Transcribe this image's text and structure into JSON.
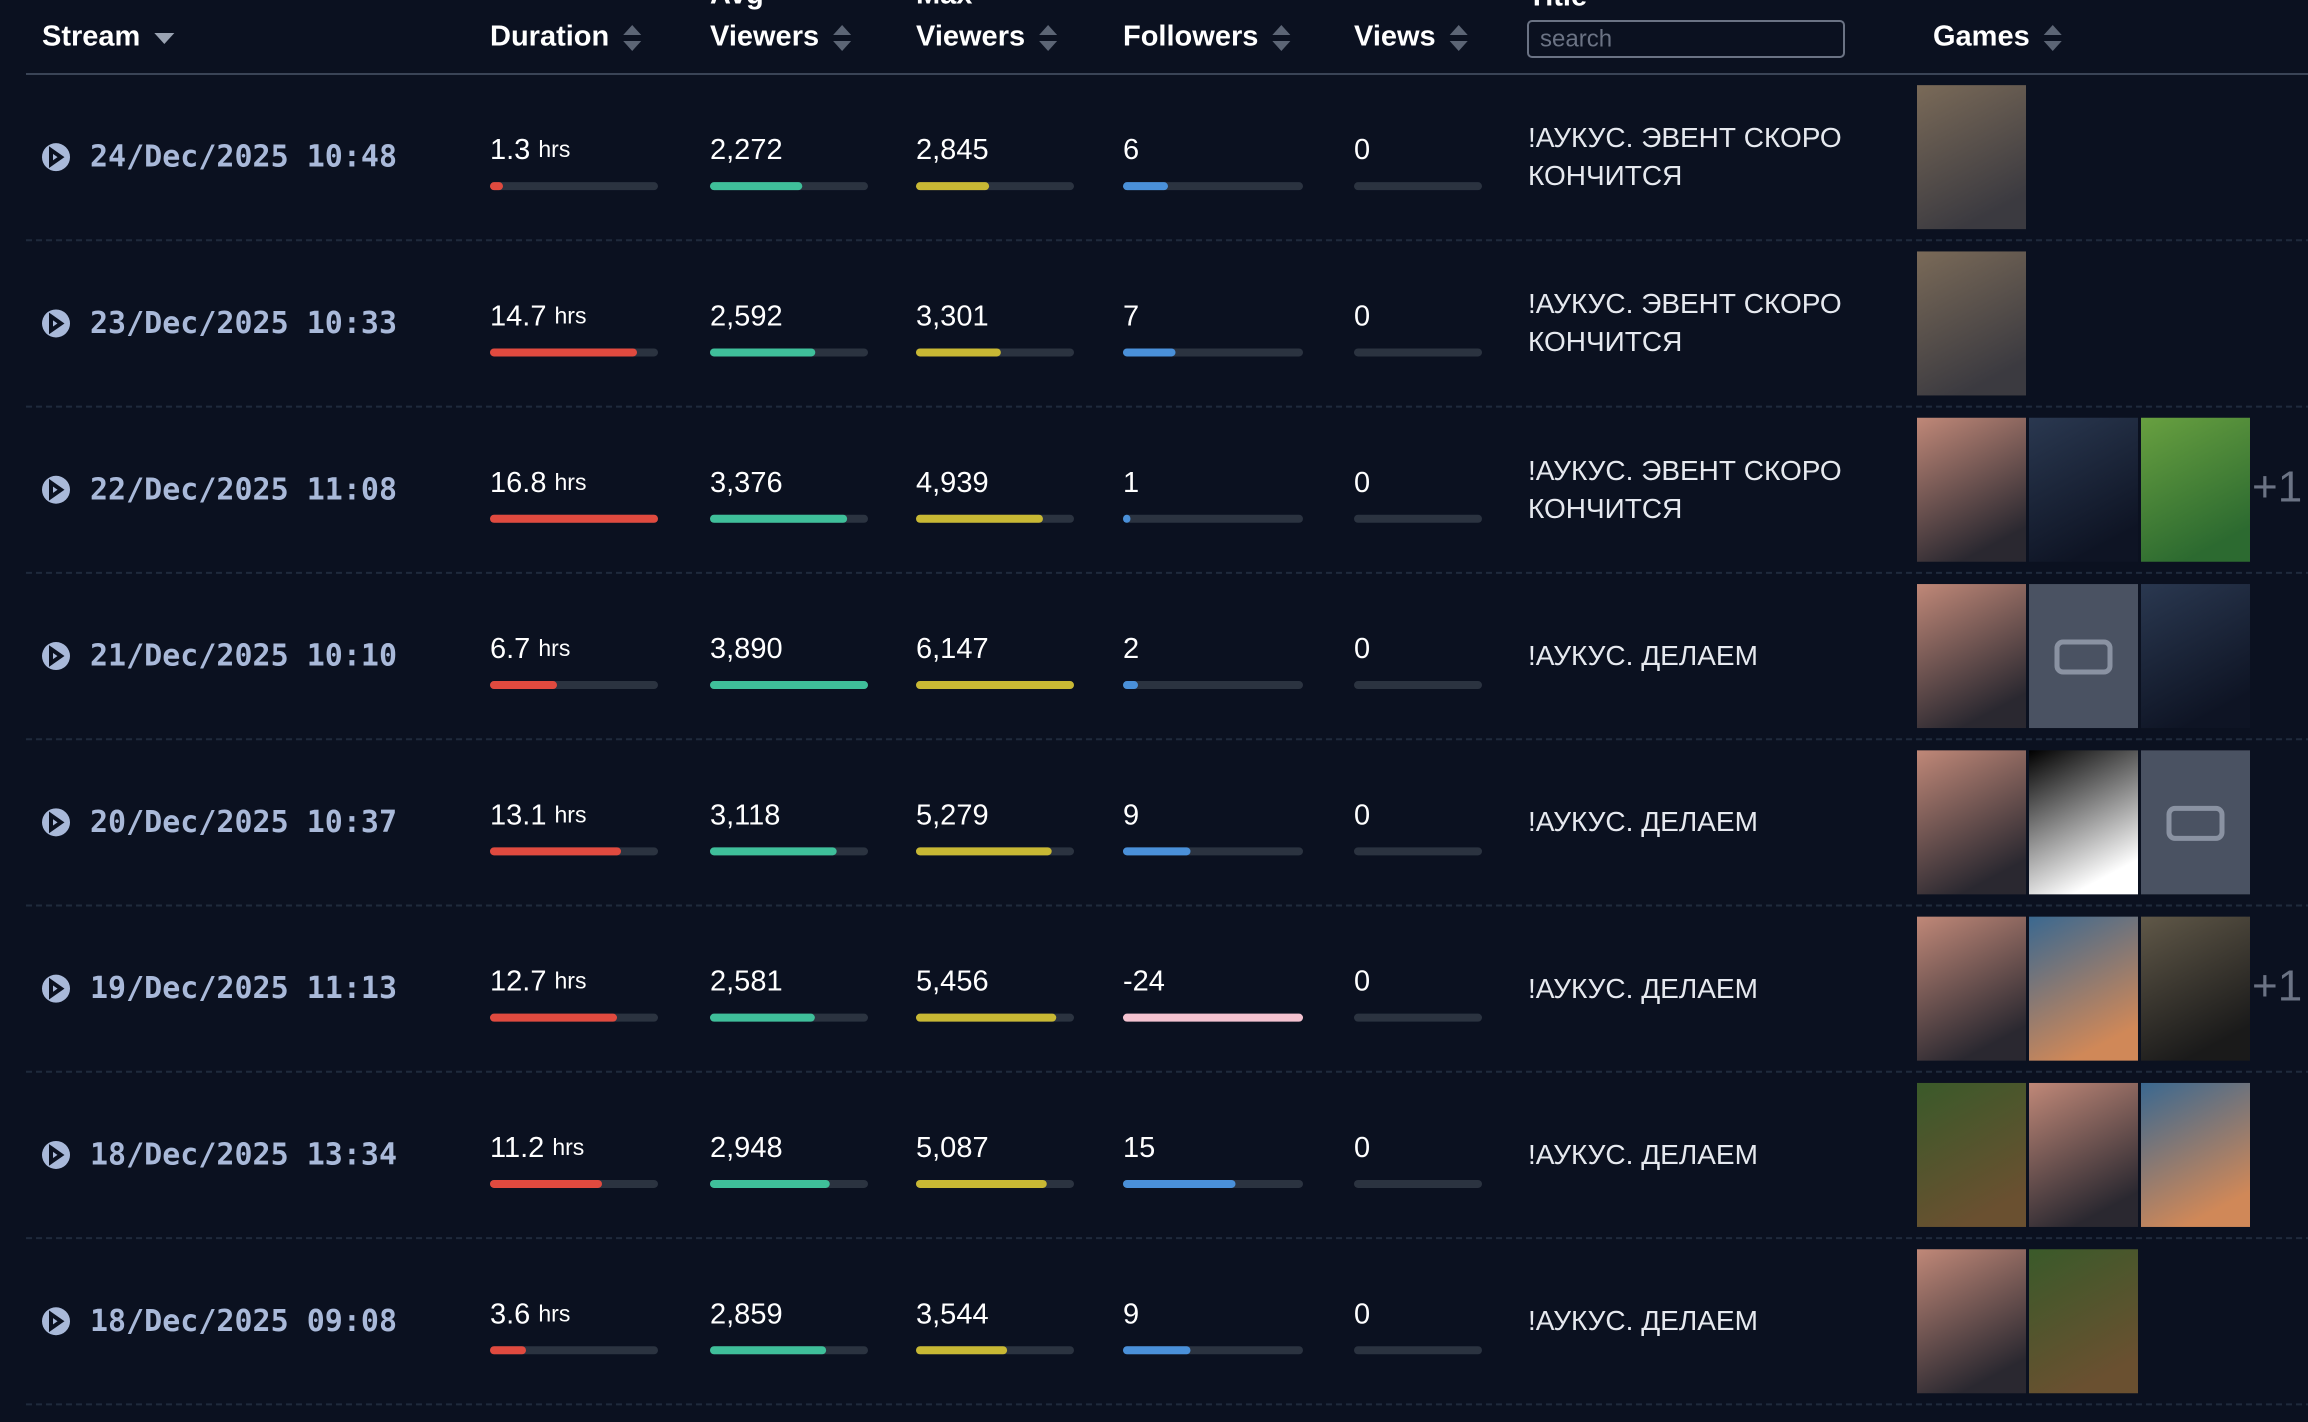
{
  "header": {
    "stream": "Stream",
    "duration": "Duration",
    "avg_viewers": [
      "Avg",
      "Viewers"
    ],
    "max_viewers": [
      "Max",
      "Viewers"
    ],
    "followers": "Followers",
    "views": "Views",
    "title": "Title",
    "search_placeholder": "search",
    "games": "Games"
  },
  "duration_unit": "hrs",
  "rows": [
    {
      "stream": "24/Dec/2025 10:48",
      "duration": 1.3,
      "avg_viewers": {
        "value": 2272,
        "label": "2,272"
      },
      "max_viewers": {
        "value": 2845,
        "label": "2,845"
      },
      "followers": 6,
      "views": 0,
      "title": "!АУКУС. ЭВЕНТ СКОРО КОНЧИТСЯ"
    },
    {
      "stream": "23/Dec/2025 10:33",
      "duration": 14.7,
      "avg_viewers": {
        "value": 2592,
        "label": "2,592"
      },
      "max_viewers": {
        "value": 3301,
        "label": "3,301"
      },
      "followers": 7,
      "views": 0,
      "title": "!АУКУС. ЭВЕНТ СКОРО КОНЧИТСЯ"
    },
    {
      "stream": "22/Dec/2025 11:08",
      "duration": 16.8,
      "avg_viewers": {
        "value": 3376,
        "label": "3,376"
      },
      "max_viewers": {
        "value": 4939,
        "label": "4,939"
      },
      "followers": 1,
      "views": 0,
      "title": "!АУКУС. ЭВЕНТ СКОРО КОНЧИТСЯ",
      "more_games": "+1"
    },
    {
      "stream": "21/Dec/2025 10:10",
      "duration": 6.7,
      "avg_viewers": {
        "value": 3890,
        "label": "3,890"
      },
      "max_viewers": {
        "value": 6147,
        "label": "6,147"
      },
      "followers": 2,
      "views": 0,
      "title": "!АУКУС. ДЕЛАЕМ"
    },
    {
      "stream": "20/Dec/2025 10:37",
      "duration": 13.1,
      "avg_viewers": {
        "value": 3118,
        "label": "3,118"
      },
      "max_viewers": {
        "value": 5279,
        "label": "5,279"
      },
      "followers": 9,
      "views": 0,
      "title": "!АУКУС. ДЕЛАЕМ"
    },
    {
      "stream": "19/Dec/2025 11:13",
      "duration": 12.7,
      "avg_viewers": {
        "value": 2581,
        "label": "2,581"
      },
      "max_viewers": {
        "value": 5456,
        "label": "5,456"
      },
      "followers": -24,
      "views": 0,
      "title": "!АУКУС. ДЕЛАЕМ",
      "more_games": "+1"
    },
    {
      "stream": "18/Dec/2025 13:34",
      "duration": 11.2,
      "avg_viewers": {
        "value": 2948,
        "label": "2,948"
      },
      "max_viewers": {
        "value": 5087,
        "label": "5,087"
      },
      "followers": 15,
      "views": 0,
      "title": "!АУКУС. ДЕЛАЕМ"
    },
    {
      "stream": "18/Dec/2025 09:08",
      "duration": 3.6,
      "avg_viewers": {
        "value": 2859,
        "label": "2,859"
      },
      "max_viewers": {
        "value": 3544,
        "label": "3,544"
      },
      "followers": 9,
      "views": 0,
      "title": "!АУКУС. ДЕЛАЕМ"
    }
  ]
}
